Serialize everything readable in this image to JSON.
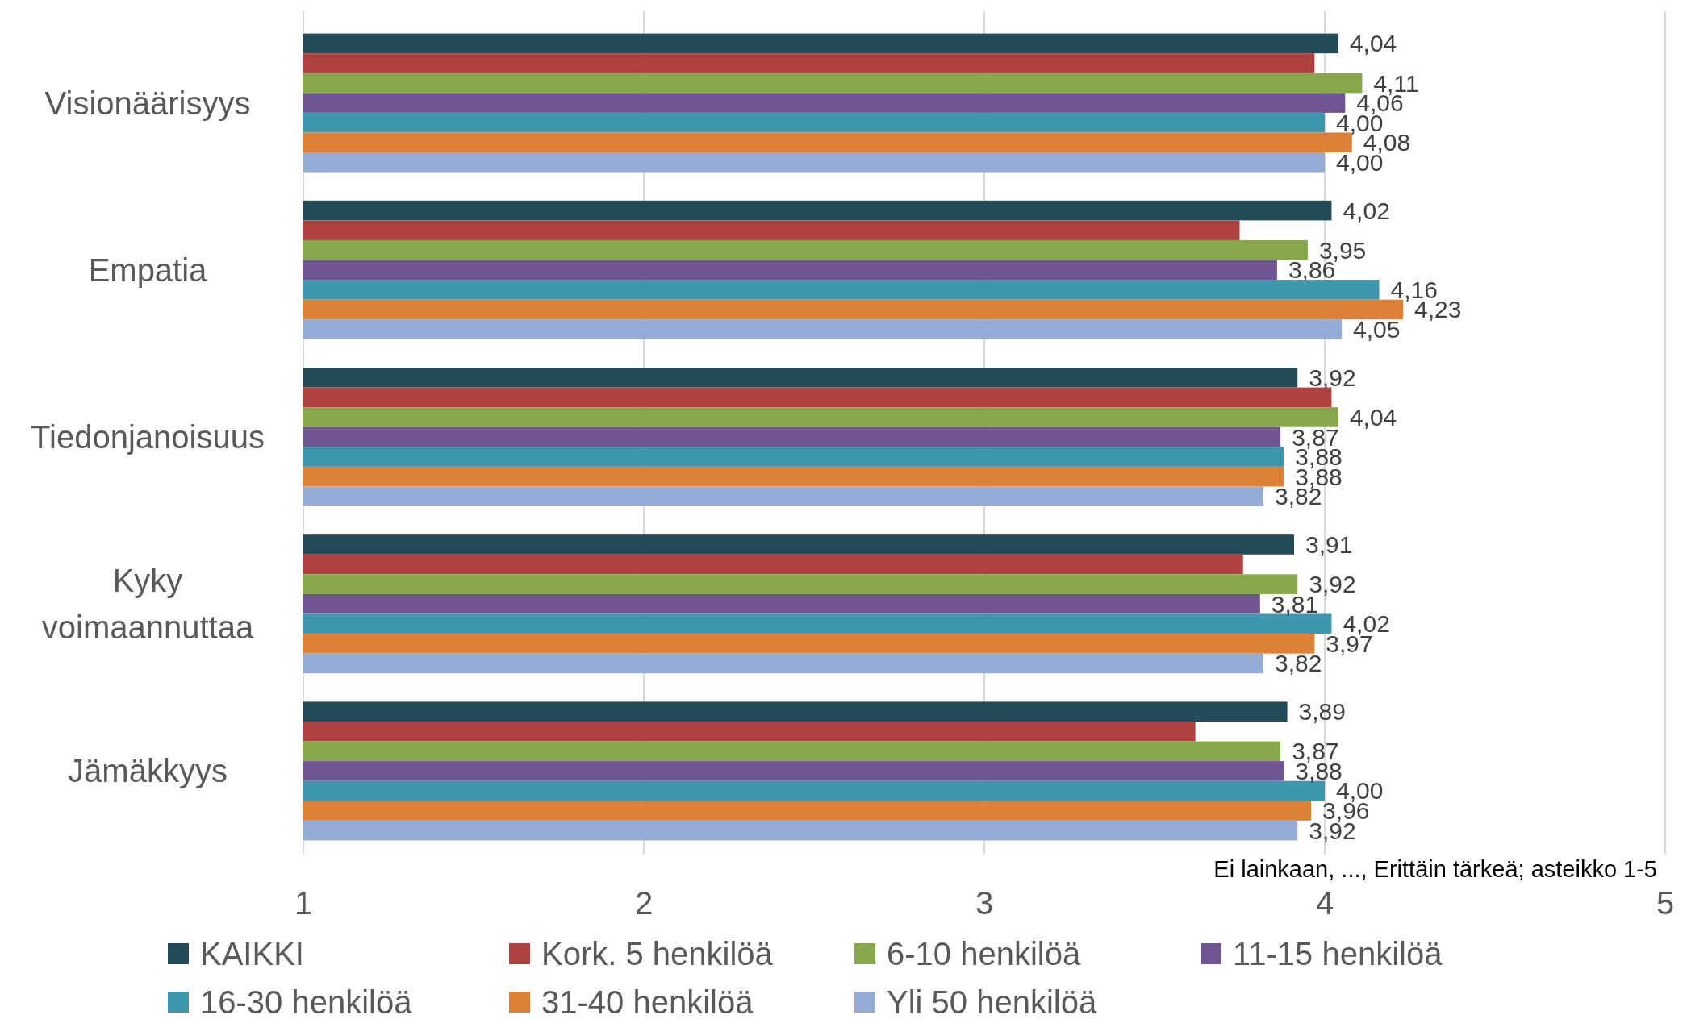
{
  "chart_data": {
    "type": "bar",
    "orientation": "horizontal",
    "categories": [
      "Visionäärisyys",
      "Empatia",
      "Tiedonjanoisuus",
      "Kyky voimaannuttaa",
      "Jämäkkyys"
    ],
    "series": [
      {
        "name": "KAIKKI",
        "color": "#234b57",
        "values": [
          4.04,
          4.02,
          3.92,
          3.91,
          3.89
        ],
        "value_labels": [
          "4,04",
          "4,02",
          "3,92",
          "3,91",
          "3,89"
        ]
      },
      {
        "name": "Kork. 5 henkilöä",
        "color": "#b04342",
        "values": [
          3.97,
          3.75,
          4.02,
          3.76,
          3.62
        ],
        "value_labels": [
          null,
          null,
          null,
          null,
          null
        ]
      },
      {
        "name": "6-10 henkilöä",
        "color": "#86a84b",
        "values": [
          4.11,
          3.95,
          4.04,
          3.92,
          3.87
        ],
        "value_labels": [
          "4,11",
          "3,95",
          "4,04",
          "3,92",
          "3,87"
        ]
      },
      {
        "name": "11-15 henkilöä",
        "color": "#6f5591",
        "values": [
          4.06,
          3.86,
          3.87,
          3.81,
          3.88
        ],
        "value_labels": [
          "4,06",
          "3,86",
          "3,87",
          "3,81",
          "3,88"
        ]
      },
      {
        "name": "16-30 henkilöä",
        "color": "#3e97ad",
        "values": [
          4.0,
          4.16,
          3.88,
          4.02,
          4.0
        ],
        "value_labels": [
          "4,00",
          "4,16",
          "3,88",
          "4,02",
          "4,00"
        ]
      },
      {
        "name": "31-40 henkilöä",
        "color": "#dd8137",
        "values": [
          4.08,
          4.23,
          3.88,
          3.97,
          3.96
        ],
        "value_labels": [
          "4,08",
          "4,23",
          "3,88",
          "3,97",
          "3,96"
        ]
      },
      {
        "name": "Yli 50 henkilöä",
        "color": "#95acd6",
        "values": [
          4.0,
          4.05,
          3.82,
          3.82,
          3.92
        ],
        "value_labels": [
          "4,00",
          "4,05",
          "3,82",
          "3,82",
          "3,92"
        ]
      }
    ],
    "xlim": [
      1,
      5
    ],
    "xticks": [
      1,
      2,
      3,
      4,
      5
    ],
    "grid": "x",
    "legend": "bottom",
    "annotations": [
      "Ei lainkaan, ..., Erittäin tärkeä; asteikko 1-5"
    ]
  }
}
